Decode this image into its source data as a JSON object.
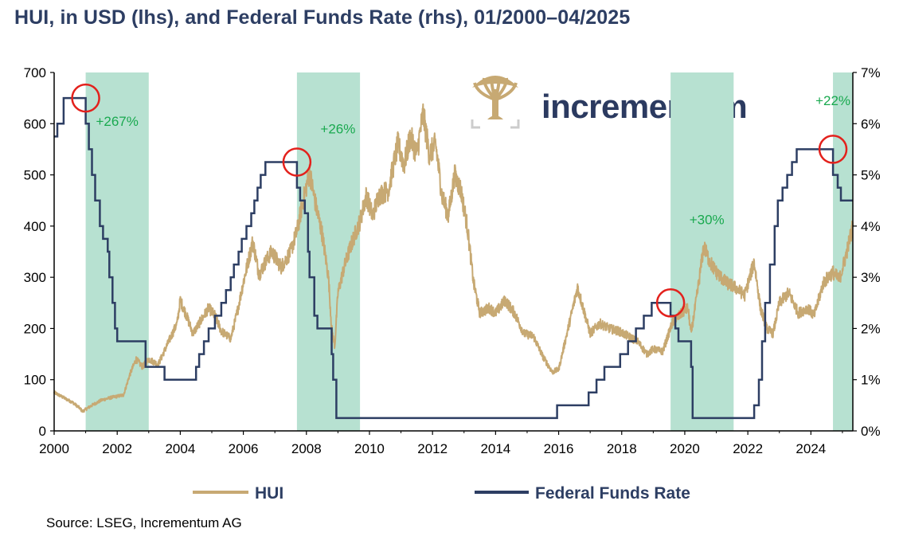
{
  "title": "HUI, in USD (lhs), and Federal Funds Rate (rhs), 01/2000–04/2025",
  "source": "Source: LSEG, Incrementum AG",
  "logo": {
    "text": "incrementum",
    "icon": "tree-logo-icon"
  },
  "colors": {
    "hui": "#c7a973",
    "fed": "#2d3e63",
    "shade": "#b7e1d1",
    "marker": "#e3211c",
    "annotation": "#19a94f"
  },
  "chart_data": {
    "type": "line",
    "title": "HUI, in USD (lhs), and Federal Funds Rate (rhs), 01/2000–04/2025",
    "x_range": [
      2000.0,
      2025.33
    ],
    "x_ticks": [
      "2000",
      "2002",
      "2004",
      "2006",
      "2008",
      "2010",
      "2012",
      "2014",
      "2016",
      "2018",
      "2020",
      "2022",
      "2024"
    ],
    "y_left": {
      "range": [
        0,
        700
      ],
      "ticks": [
        "0",
        "100",
        "200",
        "300",
        "400",
        "500",
        "600",
        "700"
      ]
    },
    "y_right": {
      "range": [
        0,
        7
      ],
      "ticks": [
        "0%",
        "1%",
        "2%",
        "3%",
        "4%",
        "5%",
        "6%",
        "7%"
      ]
    },
    "legend": {
      "position": "bottom"
    },
    "series": [
      {
        "name": "HUI",
        "axis": "left",
        "points": [
          [
            2000.0,
            75
          ],
          [
            2000.3,
            65
          ],
          [
            2000.6,
            55
          ],
          [
            2000.8,
            45
          ],
          [
            2000.9,
            38
          ],
          [
            2001.2,
            50
          ],
          [
            2001.5,
            60
          ],
          [
            2001.8,
            65
          ],
          [
            2002.2,
            70
          ],
          [
            2002.4,
            110
          ],
          [
            2002.6,
            140
          ],
          [
            2002.8,
            125
          ],
          [
            2003.0,
            140
          ],
          [
            2003.3,
            130
          ],
          [
            2003.6,
            170
          ],
          [
            2003.9,
            210
          ],
          [
            2004.0,
            255
          ],
          [
            2004.2,
            225
          ],
          [
            2004.4,
            190
          ],
          [
            2004.7,
            220
          ],
          [
            2004.9,
            240
          ],
          [
            2005.1,
            225
          ],
          [
            2005.3,
            195
          ],
          [
            2005.6,
            180
          ],
          [
            2005.8,
            230
          ],
          [
            2006.0,
            290
          ],
          [
            2006.3,
            370
          ],
          [
            2006.5,
            305
          ],
          [
            2006.7,
            330
          ],
          [
            2006.9,
            350
          ],
          [
            2007.2,
            320
          ],
          [
            2007.5,
            350
          ],
          [
            2007.7,
            390
          ],
          [
            2007.9,
            450
          ],
          [
            2008.1,
            505
          ],
          [
            2008.3,
            440
          ],
          [
            2008.5,
            385
          ],
          [
            2008.7,
            300
          ],
          [
            2008.8,
            200
          ],
          [
            2008.9,
            165
          ],
          [
            2009.0,
            270
          ],
          [
            2009.2,
            320
          ],
          [
            2009.4,
            360
          ],
          [
            2009.7,
            410
          ],
          [
            2009.9,
            460
          ],
          [
            2010.1,
            420
          ],
          [
            2010.3,
            460
          ],
          [
            2010.6,
            470
          ],
          [
            2010.9,
            560
          ],
          [
            2011.1,
            520
          ],
          [
            2011.3,
            575
          ],
          [
            2011.5,
            540
          ],
          [
            2011.7,
            620
          ],
          [
            2011.9,
            540
          ],
          [
            2012.1,
            560
          ],
          [
            2012.3,
            460
          ],
          [
            2012.5,
            420
          ],
          [
            2012.7,
            500
          ],
          [
            2012.9,
            470
          ],
          [
            2013.1,
            400
          ],
          [
            2013.3,
            290
          ],
          [
            2013.5,
            230
          ],
          [
            2013.8,
            240
          ],
          [
            2014.0,
            230
          ],
          [
            2014.3,
            255
          ],
          [
            2014.6,
            230
          ],
          [
            2014.9,
            190
          ],
          [
            2015.2,
            185
          ],
          [
            2015.5,
            145
          ],
          [
            2015.8,
            115
          ],
          [
            2016.0,
            120
          ],
          [
            2016.3,
            200
          ],
          [
            2016.6,
            280
          ],
          [
            2016.8,
            235
          ],
          [
            2017.0,
            190
          ],
          [
            2017.3,
            210
          ],
          [
            2017.6,
            200
          ],
          [
            2017.9,
            195
          ],
          [
            2018.2,
            185
          ],
          [
            2018.5,
            175
          ],
          [
            2018.8,
            150
          ],
          [
            2019.0,
            160
          ],
          [
            2019.3,
            155
          ],
          [
            2019.6,
            210
          ],
          [
            2019.9,
            230
          ],
          [
            2020.1,
            240
          ],
          [
            2020.2,
            190
          ],
          [
            2020.4,
            270
          ],
          [
            2020.6,
            360
          ],
          [
            2020.8,
            330
          ],
          [
            2021.0,
            310
          ],
          [
            2021.3,
            290
          ],
          [
            2021.6,
            280
          ],
          [
            2021.9,
            265
          ],
          [
            2022.2,
            330
          ],
          [
            2022.4,
            240
          ],
          [
            2022.6,
            200
          ],
          [
            2022.8,
            190
          ],
          [
            2023.0,
            250
          ],
          [
            2023.3,
            270
          ],
          [
            2023.6,
            230
          ],
          [
            2023.9,
            240
          ],
          [
            2024.1,
            225
          ],
          [
            2024.4,
            290
          ],
          [
            2024.7,
            310
          ],
          [
            2024.9,
            295
          ],
          [
            2025.1,
            340
          ],
          [
            2025.33,
            400
          ]
        ]
      },
      {
        "name": "Federal Funds Rate",
        "axis": "right",
        "steps": [
          [
            2000.0,
            5.75
          ],
          [
            2000.1,
            6.0
          ],
          [
            2000.3,
            6.5
          ],
          [
            2001.0,
            6.0
          ],
          [
            2001.1,
            5.5
          ],
          [
            2001.2,
            5.0
          ],
          [
            2001.3,
            4.5
          ],
          [
            2001.45,
            4.0
          ],
          [
            2001.55,
            3.75
          ],
          [
            2001.7,
            3.5
          ],
          [
            2001.75,
            3.0
          ],
          [
            2001.85,
            2.5
          ],
          [
            2001.93,
            2.0
          ],
          [
            2002.0,
            1.75
          ],
          [
            2002.9,
            1.25
          ],
          [
            2003.5,
            1.0
          ],
          [
            2004.5,
            1.25
          ],
          [
            2004.6,
            1.5
          ],
          [
            2004.75,
            1.75
          ],
          [
            2004.9,
            2.0
          ],
          [
            2005.1,
            2.25
          ],
          [
            2005.3,
            2.5
          ],
          [
            2005.45,
            2.75
          ],
          [
            2005.6,
            3.0
          ],
          [
            2005.7,
            3.25
          ],
          [
            2005.85,
            3.5
          ],
          [
            2005.95,
            3.75
          ],
          [
            2006.1,
            4.0
          ],
          [
            2006.25,
            4.25
          ],
          [
            2006.35,
            4.5
          ],
          [
            2006.45,
            4.75
          ],
          [
            2006.55,
            5.0
          ],
          [
            2006.7,
            5.25
          ],
          [
            2007.7,
            4.75
          ],
          [
            2007.8,
            4.5
          ],
          [
            2007.95,
            4.25
          ],
          [
            2008.05,
            3.5
          ],
          [
            2008.1,
            3.0
          ],
          [
            2008.25,
            2.25
          ],
          [
            2008.35,
            2.0
          ],
          [
            2008.8,
            1.5
          ],
          [
            2008.85,
            1.0
          ],
          [
            2008.95,
            0.25
          ],
          [
            2015.95,
            0.5
          ],
          [
            2016.95,
            0.75
          ],
          [
            2017.2,
            1.0
          ],
          [
            2017.45,
            1.25
          ],
          [
            2017.95,
            1.5
          ],
          [
            2018.2,
            1.75
          ],
          [
            2018.45,
            2.0
          ],
          [
            2018.7,
            2.25
          ],
          [
            2018.95,
            2.5
          ],
          [
            2019.55,
            2.25
          ],
          [
            2019.7,
            2.0
          ],
          [
            2019.8,
            1.75
          ],
          [
            2020.2,
            1.25
          ],
          [
            2020.25,
            0.25
          ],
          [
            2022.2,
            0.5
          ],
          [
            2022.35,
            1.0
          ],
          [
            2022.45,
            1.75
          ],
          [
            2022.55,
            2.5
          ],
          [
            2022.7,
            3.25
          ],
          [
            2022.85,
            4.0
          ],
          [
            2022.95,
            4.5
          ],
          [
            2023.1,
            4.75
          ],
          [
            2023.25,
            5.0
          ],
          [
            2023.4,
            5.25
          ],
          [
            2023.55,
            5.5
          ],
          [
            2024.7,
            5.0
          ],
          [
            2024.85,
            4.75
          ],
          [
            2024.95,
            4.5
          ],
          [
            2025.33,
            4.5
          ]
        ]
      }
    ],
    "shaded_periods": [
      [
        2001.0,
        2003.0
      ],
      [
        2007.7,
        2009.7
      ],
      [
        2019.55,
        2021.55
      ],
      [
        2024.7,
        2025.33
      ]
    ],
    "markers": [
      {
        "x": 2001.0,
        "rate": 6.5
      },
      {
        "x": 2007.7,
        "rate": 5.25
      },
      {
        "x": 2019.55,
        "rate": 2.5
      },
      {
        "x": 2024.7,
        "rate": 5.5
      }
    ],
    "annotations": [
      {
        "text": "+267%",
        "x": 2002.0,
        "y": 596
      },
      {
        "text": "+26%",
        "x": 2009.0,
        "y": 581
      },
      {
        "text": "+30%",
        "x": 2020.7,
        "y": 404
      },
      {
        "text": "+22%",
        "x": 2024.7,
        "y": 636
      }
    ]
  }
}
